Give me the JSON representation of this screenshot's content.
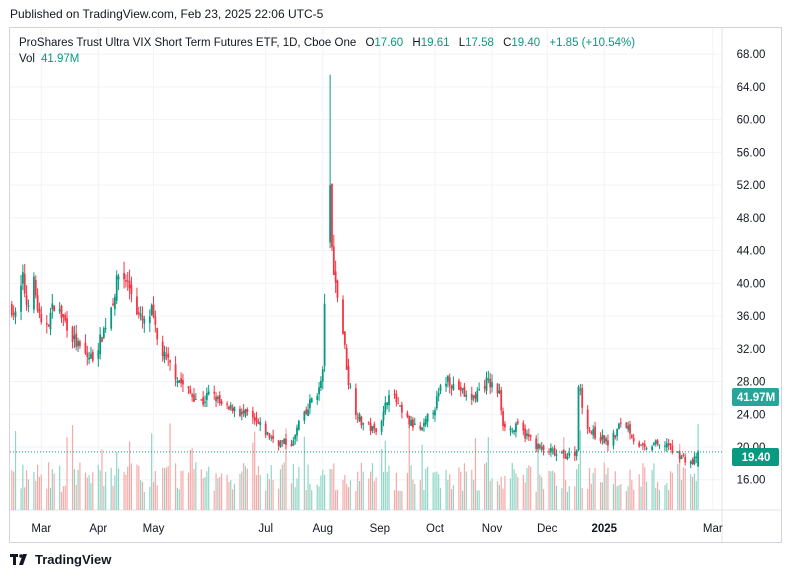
{
  "header": {
    "published": "Published on TradingView.com, Feb 23, 2025 22:06 UTC-5"
  },
  "legend": {
    "symbol": "ProShares Trust Ultra VIX Short Term Futures ETF, 1D, Cboe One",
    "open_label": "O",
    "open": "17.60",
    "high_label": "H",
    "high": "19.61",
    "low_label": "L",
    "low": "17.58",
    "close_label": "C",
    "close": "19.40",
    "change": "+1.85 (+10.54%)",
    "vol_label": "Vol",
    "vol": "41.97M"
  },
  "badges": {
    "volume": "41.97M",
    "price": "19.40"
  },
  "footer": {
    "brand": "TradingView"
  },
  "colors": {
    "up": "#089981",
    "down": "#f23645",
    "vol_up": "#8fd6c6",
    "vol_down": "#f7a9a7",
    "grid": "#f0f3fa"
  },
  "chart_data": {
    "type": "candlestick",
    "title": "ProShares Trust Ultra VIX Short Term Futures ETF, 1D, Cboe One",
    "y_ticks": [
      "16.00",
      "20.00",
      "24.00",
      "28.00",
      "32.00",
      "36.00",
      "40.00",
      "44.00",
      "48.00",
      "52.00",
      "56.00",
      "60.00",
      "64.00",
      "68.00"
    ],
    "ylim": [
      12.3,
      71.2
    ],
    "x_ticks": [
      "Mar",
      "Apr",
      "May",
      "Jul",
      "Aug",
      "Sep",
      "Oct",
      "Nov",
      "Dec",
      "2025",
      "Mar"
    ],
    "x_tick_dates": [
      "2024-03-01",
      "2024-04-01",
      "2024-05-01",
      "2024-07-01",
      "2024-08-01",
      "2024-09-01",
      "2024-10-01",
      "2024-11-01",
      "2024-12-01",
      "2025-01-01",
      "2025-03-01"
    ],
    "xlim": [
      "2024-02-13",
      "2025-03-06"
    ],
    "last_close": 19.4,
    "last_volume": "41.97M",
    "close_series": [
      [
        "2024-02-14",
        37.0
      ],
      [
        "2024-02-16",
        36.0
      ],
      [
        "2024-02-20",
        40.5
      ],
      [
        "2024-02-22",
        37.5
      ],
      [
        "2024-02-26",
        40.0
      ],
      [
        "2024-02-28",
        37.0
      ],
      [
        "2024-03-01",
        34.5
      ],
      [
        "2024-03-05",
        35.5
      ],
      [
        "2024-03-08",
        37.5
      ],
      [
        "2024-03-12",
        36.0
      ],
      [
        "2024-03-15",
        35.0
      ],
      [
        "2024-03-19",
        33.0
      ],
      [
        "2024-03-22",
        32.0
      ],
      [
        "2024-03-26",
        31.0
      ],
      [
        "2024-03-29",
        31.0
      ],
      [
        "2024-04-02",
        33.0
      ],
      [
        "2024-04-05",
        35.0
      ],
      [
        "2024-04-09",
        38.0
      ],
      [
        "2024-04-12",
        41.0
      ],
      [
        "2024-04-16",
        40.5
      ],
      [
        "2024-04-19",
        39.0
      ],
      [
        "2024-04-23",
        36.0
      ],
      [
        "2024-04-26",
        35.0
      ],
      [
        "2024-04-30",
        36.5
      ],
      [
        "2024-05-03",
        33.0
      ],
      [
        "2024-05-07",
        31.0
      ],
      [
        "2024-05-10",
        30.0
      ],
      [
        "2024-05-14",
        28.5
      ],
      [
        "2024-05-17",
        27.5
      ],
      [
        "2024-05-21",
        26.5
      ],
      [
        "2024-05-24",
        26.0
      ],
      [
        "2024-05-28",
        25.5
      ],
      [
        "2024-05-31",
        26.5
      ],
      [
        "2024-06-04",
        26.0
      ],
      [
        "2024-06-07",
        25.0
      ],
      [
        "2024-06-11",
        24.5
      ],
      [
        "2024-06-14",
        25.0
      ],
      [
        "2024-06-18",
        24.0
      ],
      [
        "2024-06-21",
        24.0
      ],
      [
        "2024-06-25",
        23.0
      ],
      [
        "2024-06-28",
        22.5
      ],
      [
        "2024-07-02",
        21.5
      ],
      [
        "2024-07-05",
        21.0
      ],
      [
        "2024-07-09",
        20.5
      ],
      [
        "2024-07-12",
        20.5
      ],
      [
        "2024-07-16",
        20.5
      ],
      [
        "2024-07-19",
        23.0
      ],
      [
        "2024-07-23",
        24.0
      ],
      [
        "2024-07-26",
        26.0
      ],
      [
        "2024-07-30",
        27.0
      ],
      [
        "2024-08-01",
        29.0
      ],
      [
        "2024-08-02",
        38.0
      ],
      [
        "2024-08-05",
        52.0
      ],
      [
        "2024-08-06",
        44.0
      ],
      [
        "2024-08-08",
        40.0
      ],
      [
        "2024-08-12",
        34.0
      ],
      [
        "2024-08-15",
        28.0
      ],
      [
        "2024-08-19",
        24.5
      ],
      [
        "2024-08-22",
        23.0
      ],
      [
        "2024-08-26",
        22.5
      ],
      [
        "2024-08-29",
        22.0
      ],
      [
        "2024-09-03",
        24.0
      ],
      [
        "2024-09-06",
        27.0
      ],
      [
        "2024-09-10",
        25.5
      ],
      [
        "2024-09-13",
        24.0
      ],
      [
        "2024-09-17",
        23.0
      ],
      [
        "2024-09-20",
        22.5
      ],
      [
        "2024-09-24",
        22.0
      ],
      [
        "2024-09-27",
        23.5
      ],
      [
        "2024-10-01",
        25.0
      ],
      [
        "2024-10-04",
        27.0
      ],
      [
        "2024-10-08",
        28.5
      ],
      [
        "2024-10-11",
        27.5
      ],
      [
        "2024-10-15",
        27.0
      ],
      [
        "2024-10-18",
        26.0
      ],
      [
        "2024-10-22",
        26.0
      ],
      [
        "2024-10-25",
        27.0
      ],
      [
        "2024-10-29",
        28.0
      ],
      [
        "2024-11-01",
        27.5
      ],
      [
        "2024-11-05",
        26.5
      ],
      [
        "2024-11-07",
        23.0
      ],
      [
        "2024-11-12",
        22.0
      ],
      [
        "2024-11-15",
        22.5
      ],
      [
        "2024-11-19",
        21.5
      ],
      [
        "2024-11-22",
        21.0
      ],
      [
        "2024-11-26",
        20.0
      ],
      [
        "2024-11-29",
        19.5
      ],
      [
        "2024-12-03",
        19.5
      ],
      [
        "2024-12-06",
        19.0
      ],
      [
        "2024-12-10",
        19.0
      ],
      [
        "2024-12-13",
        19.0
      ],
      [
        "2024-12-17",
        19.5
      ],
      [
        "2024-12-18",
        28.0
      ],
      [
        "2024-12-20",
        25.0
      ],
      [
        "2024-12-24",
        22.0
      ],
      [
        "2024-12-27",
        21.5
      ],
      [
        "2024-12-31",
        21.0
      ],
      [
        "2025-01-03",
        20.5
      ],
      [
        "2025-01-07",
        21.5
      ],
      [
        "2025-01-10",
        23.0
      ],
      [
        "2025-01-14",
        22.5
      ],
      [
        "2025-01-17",
        21.0
      ],
      [
        "2025-01-21",
        20.0
      ],
      [
        "2025-01-24",
        19.5
      ],
      [
        "2025-01-28",
        20.5
      ],
      [
        "2025-01-31",
        20.0
      ],
      [
        "2025-02-04",
        20.5
      ],
      [
        "2025-02-07",
        19.5
      ],
      [
        "2025-02-11",
        19.0
      ],
      [
        "2025-02-14",
        18.5
      ],
      [
        "2025-02-18",
        18.0
      ],
      [
        "2025-02-21",
        19.4
      ]
    ]
  }
}
